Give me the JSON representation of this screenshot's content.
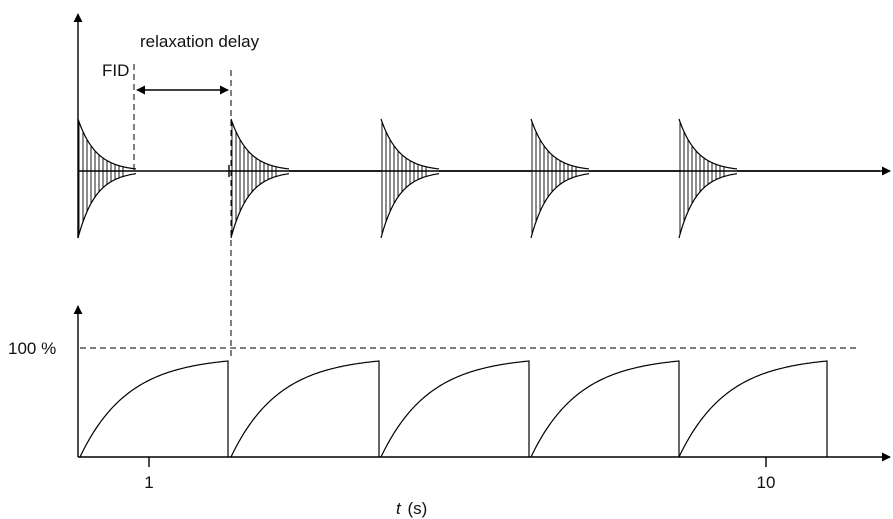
{
  "labels": {
    "fid": "FID",
    "relaxation_delay": "relaxation delay",
    "hundred_percent": "100 %",
    "tick_1": "1",
    "tick_10": "10",
    "t_axis_var": "t",
    "t_axis_unit": "(s)"
  },
  "pulses": 5
}
